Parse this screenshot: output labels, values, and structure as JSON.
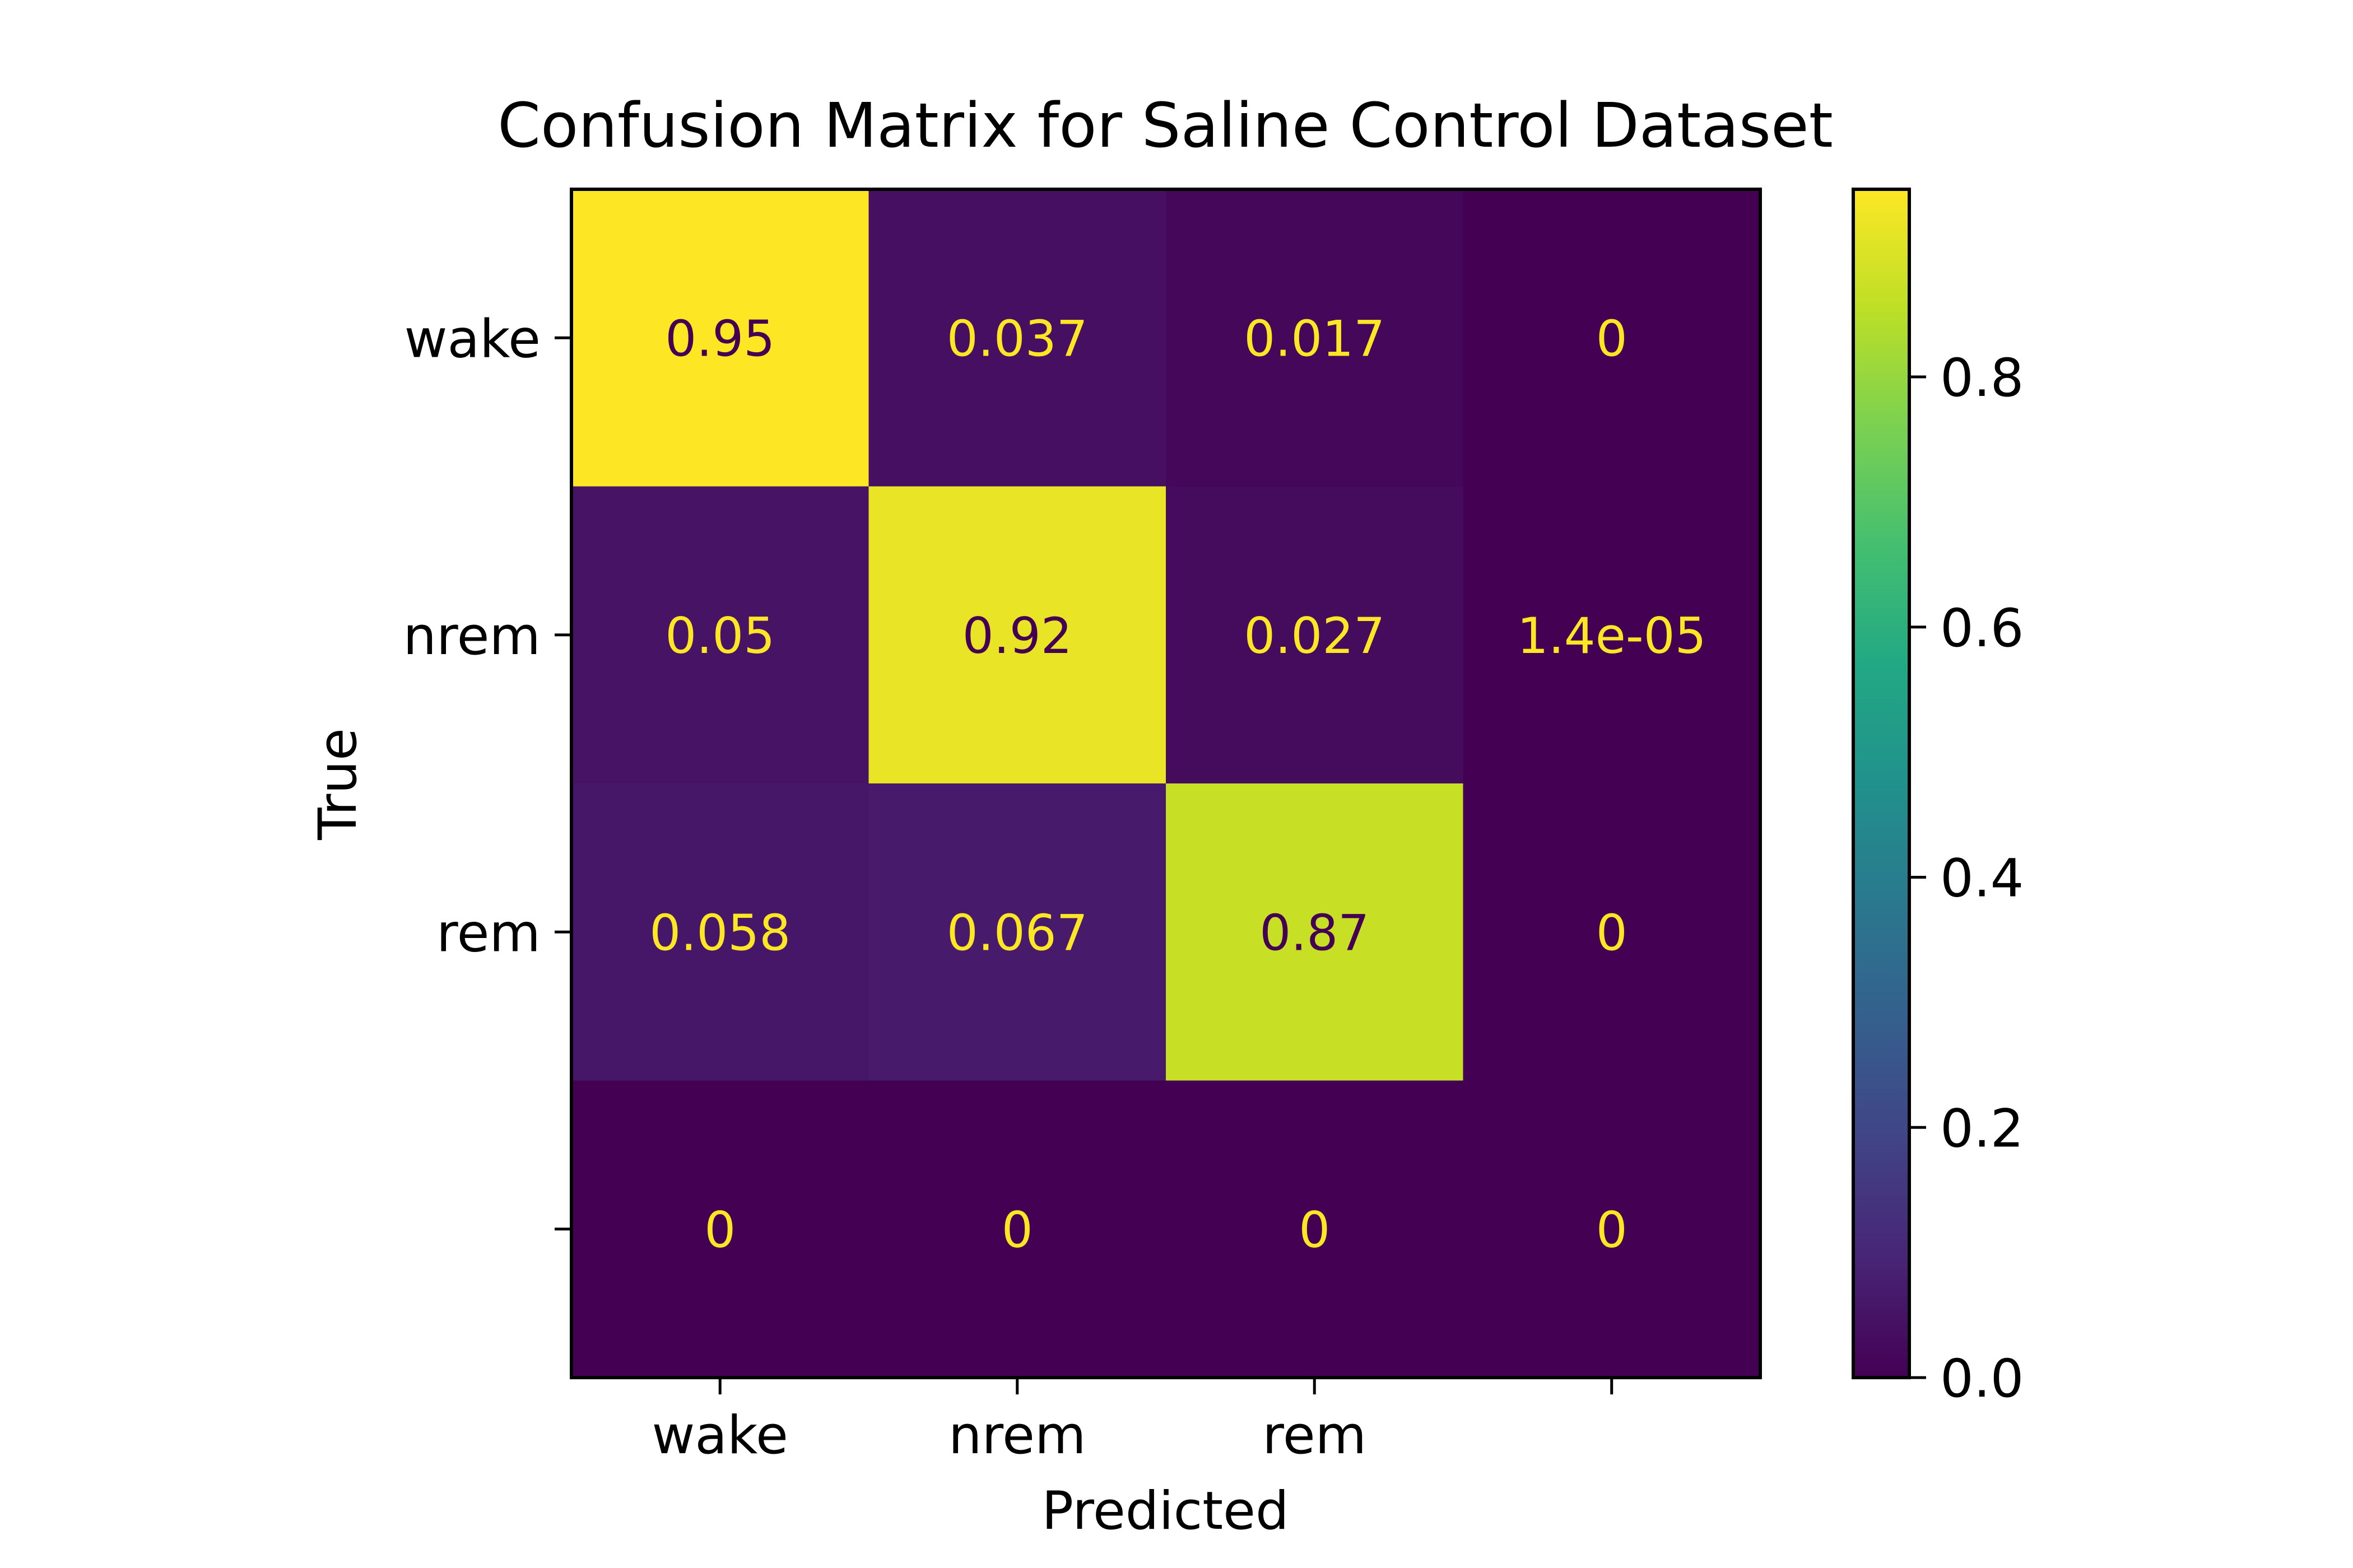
{
  "chart_data": {
    "type": "heatmap",
    "title": "Confusion Matrix for Saline Control Dataset",
    "xlabel": "Predicted",
    "ylabel": "True",
    "x_categories": [
      "wake",
      "nrem",
      "rem",
      ""
    ],
    "y_categories": [
      "wake",
      "nrem",
      "rem",
      ""
    ],
    "values": [
      [
        0.95,
        0.037,
        0.017,
        0
      ],
      [
        0.05,
        0.92,
        0.027,
        1.4e-05
      ],
      [
        0.058,
        0.067,
        0.87,
        0
      ],
      [
        0,
        0,
        0,
        0
      ]
    ],
    "cell_labels": [
      [
        "0.95",
        "0.037",
        "0.017",
        "0"
      ],
      [
        "0.05",
        "0.92",
        "0.027",
        "1.4e-05"
      ],
      [
        "0.058",
        "0.067",
        "0.87",
        "0"
      ],
      [
        "0",
        "0",
        "0",
        "0"
      ]
    ],
    "colormap": "viridis",
    "colorbar": {
      "range": [
        0,
        0.95
      ],
      "ticks": [
        0.0,
        0.2,
        0.4,
        0.6,
        0.8
      ],
      "tick_labels": [
        "0.0",
        "0.2",
        "0.4",
        "0.6",
        "0.8"
      ]
    },
    "label_colors": {
      "on_dark": "#fde725",
      "on_light": "#440154"
    }
  }
}
